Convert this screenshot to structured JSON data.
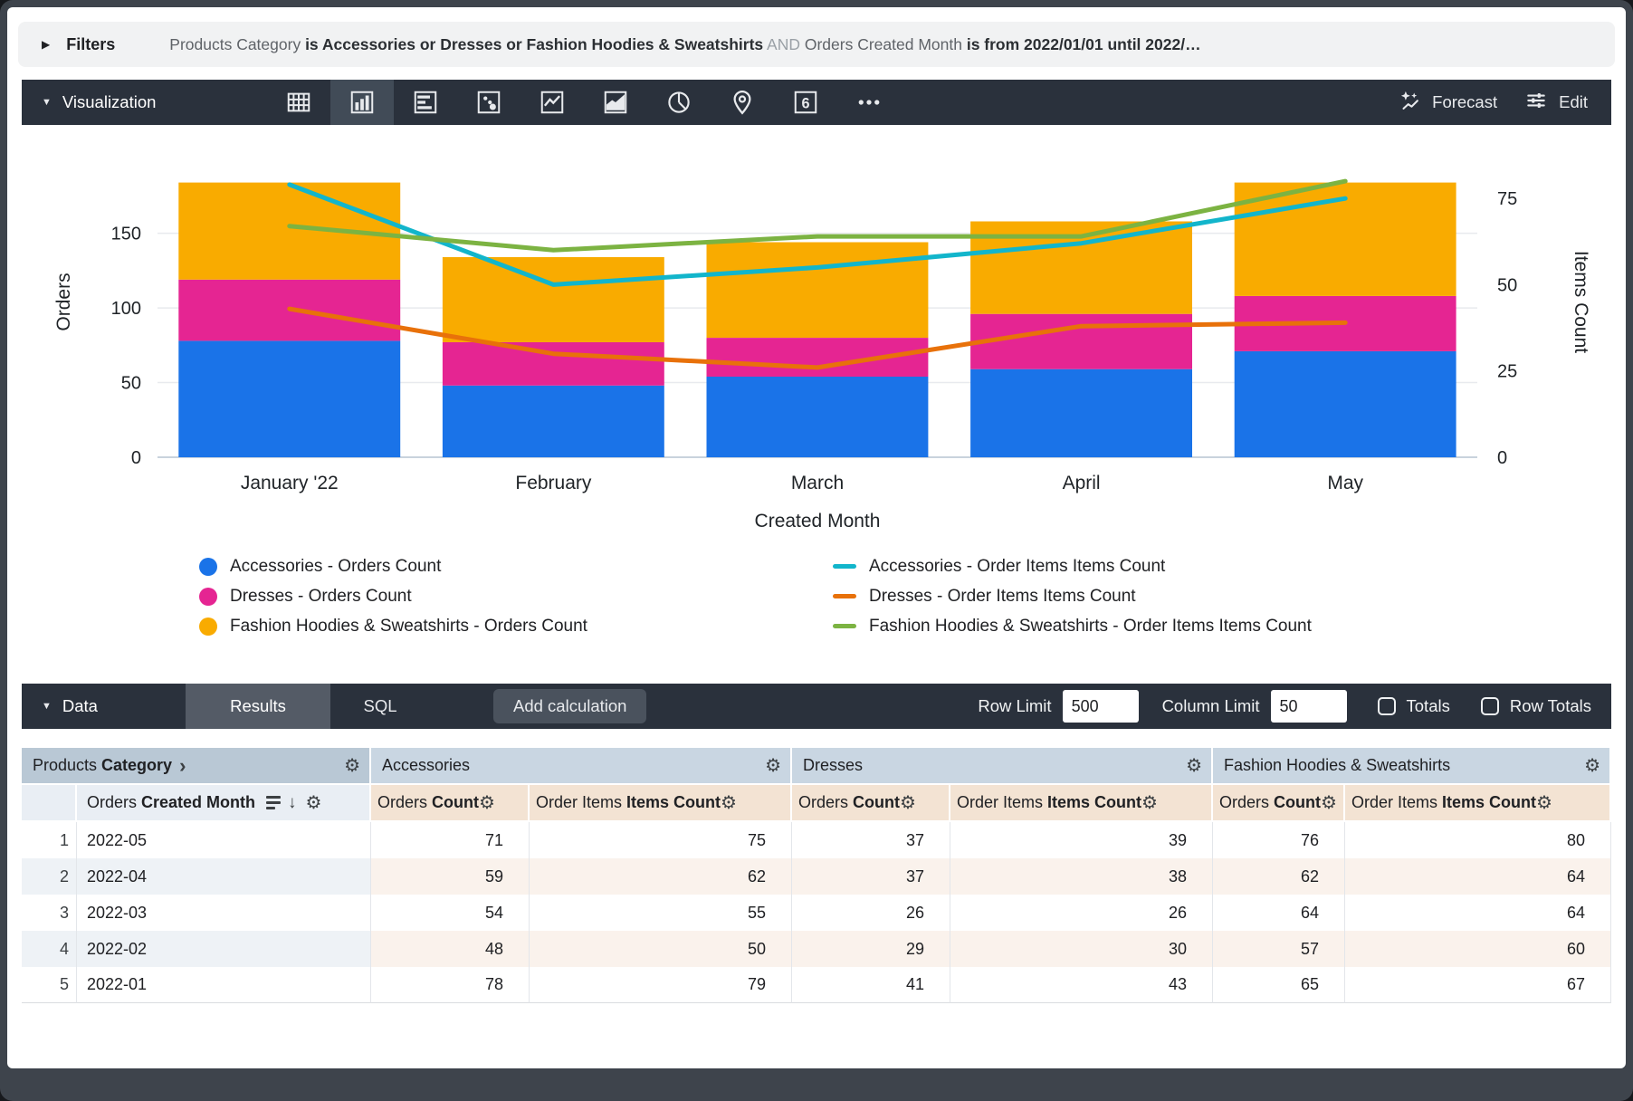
{
  "filters_bar": {
    "label": "Filters",
    "summary_segments": [
      {
        "text": "Products Category ",
        "style": "plain"
      },
      {
        "text": "is Accessories or Dresses or Fashion Hoodies & Sweatshirts",
        "style": "bold"
      },
      {
        "text": " AND ",
        "style": "and"
      },
      {
        "text": "Orders Created Month ",
        "style": "plain"
      },
      {
        "text": "is from 2022/01/01 until 2022/…",
        "style": "bold"
      }
    ]
  },
  "viz_toolbar": {
    "title": "Visualization",
    "icons": [
      "table",
      "column",
      "bar",
      "scatter",
      "line",
      "area",
      "pie",
      "map",
      "single-value",
      "more"
    ],
    "selected_icon": "column",
    "forecast_label": "Forecast",
    "edit_label": "Edit"
  },
  "chart_data": {
    "type": "bar",
    "stacked": true,
    "categories": [
      "January '22",
      "February",
      "March",
      "April",
      "May"
    ],
    "xlabel": "Created Month",
    "left_axis": {
      "label": "Orders",
      "ticks": [
        0,
        50,
        100,
        150
      ],
      "max": 208
    },
    "right_axis": {
      "label": "Items Count",
      "ticks": [
        0,
        25,
        50,
        75
      ],
      "max": 90
    },
    "grid": "horizontal-left-ticks",
    "legend_position": "bottom",
    "bar_series": [
      {
        "name": "Accessories - Orders Count",
        "color": "#1A73E8",
        "values": [
          78,
          48,
          54,
          59,
          71
        ]
      },
      {
        "name": "Dresses - Orders Count",
        "color": "#E52592",
        "values": [
          41,
          29,
          26,
          37,
          37
        ]
      },
      {
        "name": "Fashion Hoodies & Sweatshirts - Orders Count",
        "color": "#F9AB00",
        "values": [
          65,
          57,
          64,
          62,
          76
        ]
      }
    ],
    "line_series": [
      {
        "name": "Accessories - Order Items Items Count",
        "color": "#12B5CB",
        "values": [
          79,
          50,
          55,
          62,
          75
        ]
      },
      {
        "name": "Dresses - Order Items Items Count",
        "color": "#E8710A",
        "values": [
          43,
          30,
          26,
          38,
          39
        ]
      },
      {
        "name": "Fashion Hoodies & Sweatshirts - Order Items Items Count",
        "color": "#7CB342",
        "values": [
          67,
          60,
          64,
          64,
          80
        ]
      }
    ]
  },
  "data_bar": {
    "label": "Data",
    "tabs": [
      "Results",
      "SQL"
    ],
    "active_tab": "Results",
    "add_calculation_label": "Add calculation",
    "row_limit_label": "Row Limit",
    "row_limit_value": "500",
    "column_limit_label": "Column Limit",
    "column_limit_value": "50",
    "totals_label": "Totals",
    "totals_checked": false,
    "row_totals_label": "Row Totals",
    "row_totals_checked": false
  },
  "table": {
    "dimension_header": {
      "prefix": "Products ",
      "bold": "Category"
    },
    "row_header": {
      "prefix": "Orders ",
      "bold": "Created Month"
    },
    "measure_labels": [
      {
        "prefix": "Orders ",
        "bold": "Count"
      },
      {
        "prefix": "Order Items ",
        "bold": "Items Count"
      }
    ],
    "groups": [
      "Accessories",
      "Dresses",
      "Fashion Hoodies & Sweatshirts"
    ],
    "rows": [
      {
        "index": "1",
        "month": "2022-05",
        "values": [
          71,
          75,
          37,
          39,
          76,
          80
        ]
      },
      {
        "index": "2",
        "month": "2022-04",
        "values": [
          59,
          62,
          37,
          38,
          62,
          64
        ]
      },
      {
        "index": "3",
        "month": "2022-03",
        "values": [
          54,
          55,
          26,
          26,
          64,
          64
        ]
      },
      {
        "index": "4",
        "month": "2022-02",
        "values": [
          48,
          50,
          29,
          30,
          57,
          60
        ]
      },
      {
        "index": "5",
        "month": "2022-01",
        "values": [
          78,
          79,
          41,
          43,
          65,
          67
        ]
      }
    ]
  }
}
